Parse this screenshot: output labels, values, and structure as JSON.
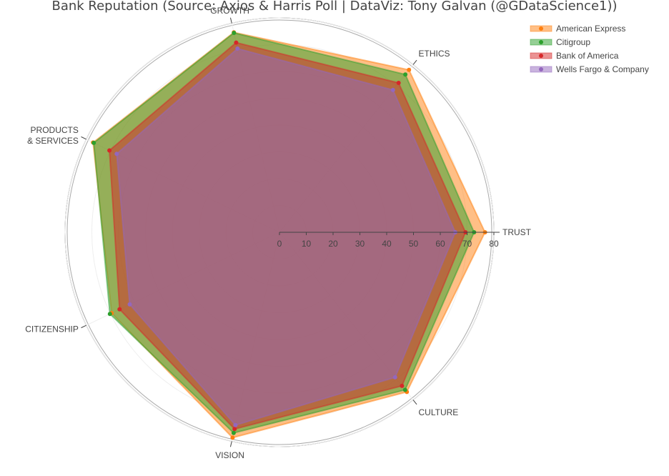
{
  "chart_data": {
    "type": "radar",
    "title": "Bank Reputation (Source: Axios & Harris Poll  |  DataViz: Tony Galvan (@GDataScience1))",
    "categories": [
      "TRUST",
      "ETHICS",
      "GROWTH",
      "PRODUCTS\n& SERVICES",
      "CITIZENSHIP",
      "VISION",
      "CULTURE"
    ],
    "radial_ticks": [
      0,
      10,
      20,
      30,
      40,
      50,
      60,
      70,
      80
    ],
    "radial_range": [
      0,
      80
    ],
    "legend_position": "top-right",
    "series": [
      {
        "name": "American Express",
        "values": [
          76.7,
          77.5,
          76.5,
          77.2,
          69.5,
          78.6,
          76.2
        ],
        "color": "#ff7f0e"
      },
      {
        "name": "Citigroup",
        "values": [
          72.6,
          75.3,
          76.3,
          76.9,
          70.2,
          76.8,
          75.2
        ],
        "color": "#2ca02c"
      },
      {
        "name": "Bank of America",
        "values": [
          69.4,
          71.3,
          72.6,
          70.4,
          66.2,
          75.3,
          73.3
        ],
        "color": "#d62728"
      },
      {
        "name": "Wells Fargo & Company",
        "values": [
          65.6,
          67.9,
          70.3,
          67.4,
          62.0,
          73.8,
          69.2
        ],
        "color": "#9467bd"
      }
    ]
  }
}
